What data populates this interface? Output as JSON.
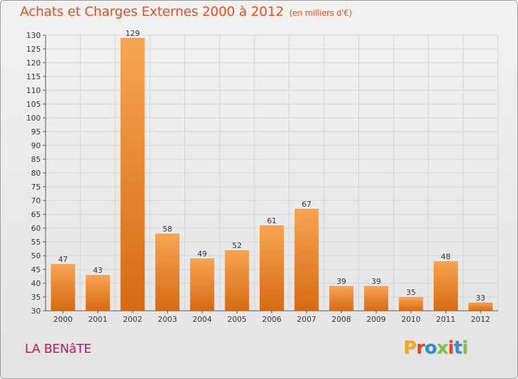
{
  "title": "Achats et Charges Externes 2000 à 2012",
  "subtitle": "(en milliers d'€)",
  "commune": "LA BENâTE",
  "logo": {
    "text": "Proxiti",
    "colors": [
      "#f5a623",
      "#e8431f",
      "#2b8fd6",
      "#7dc242",
      "#e8431f",
      "#2b8fd6",
      "#7dc242"
    ]
  },
  "colors": {
    "title": "#e2501b",
    "commune": "#c8174f",
    "bar_light": "#f7a552",
    "bar_dark": "#d66a14"
  },
  "chart_data": {
    "type": "bar",
    "title": "Achats et Charges Externes 2000 à 2012",
    "subtitle": "(en milliers d'€)",
    "categories": [
      "2000",
      "2001",
      "2002",
      "2003",
      "2004",
      "2005",
      "2006",
      "2007",
      "2008",
      "2009",
      "2010",
      "2011",
      "2012"
    ],
    "values": [
      47,
      43,
      129,
      58,
      49,
      52,
      61,
      67,
      39,
      39,
      35,
      48,
      33
    ],
    "ylim": [
      30,
      130
    ],
    "yticks": [
      30,
      35,
      40,
      45,
      50,
      55,
      60,
      65,
      70,
      75,
      80,
      85,
      90,
      95,
      100,
      105,
      110,
      115,
      120,
      125,
      130
    ],
    "grid": true,
    "legend": "none",
    "xlabel": "",
    "ylabel": ""
  }
}
